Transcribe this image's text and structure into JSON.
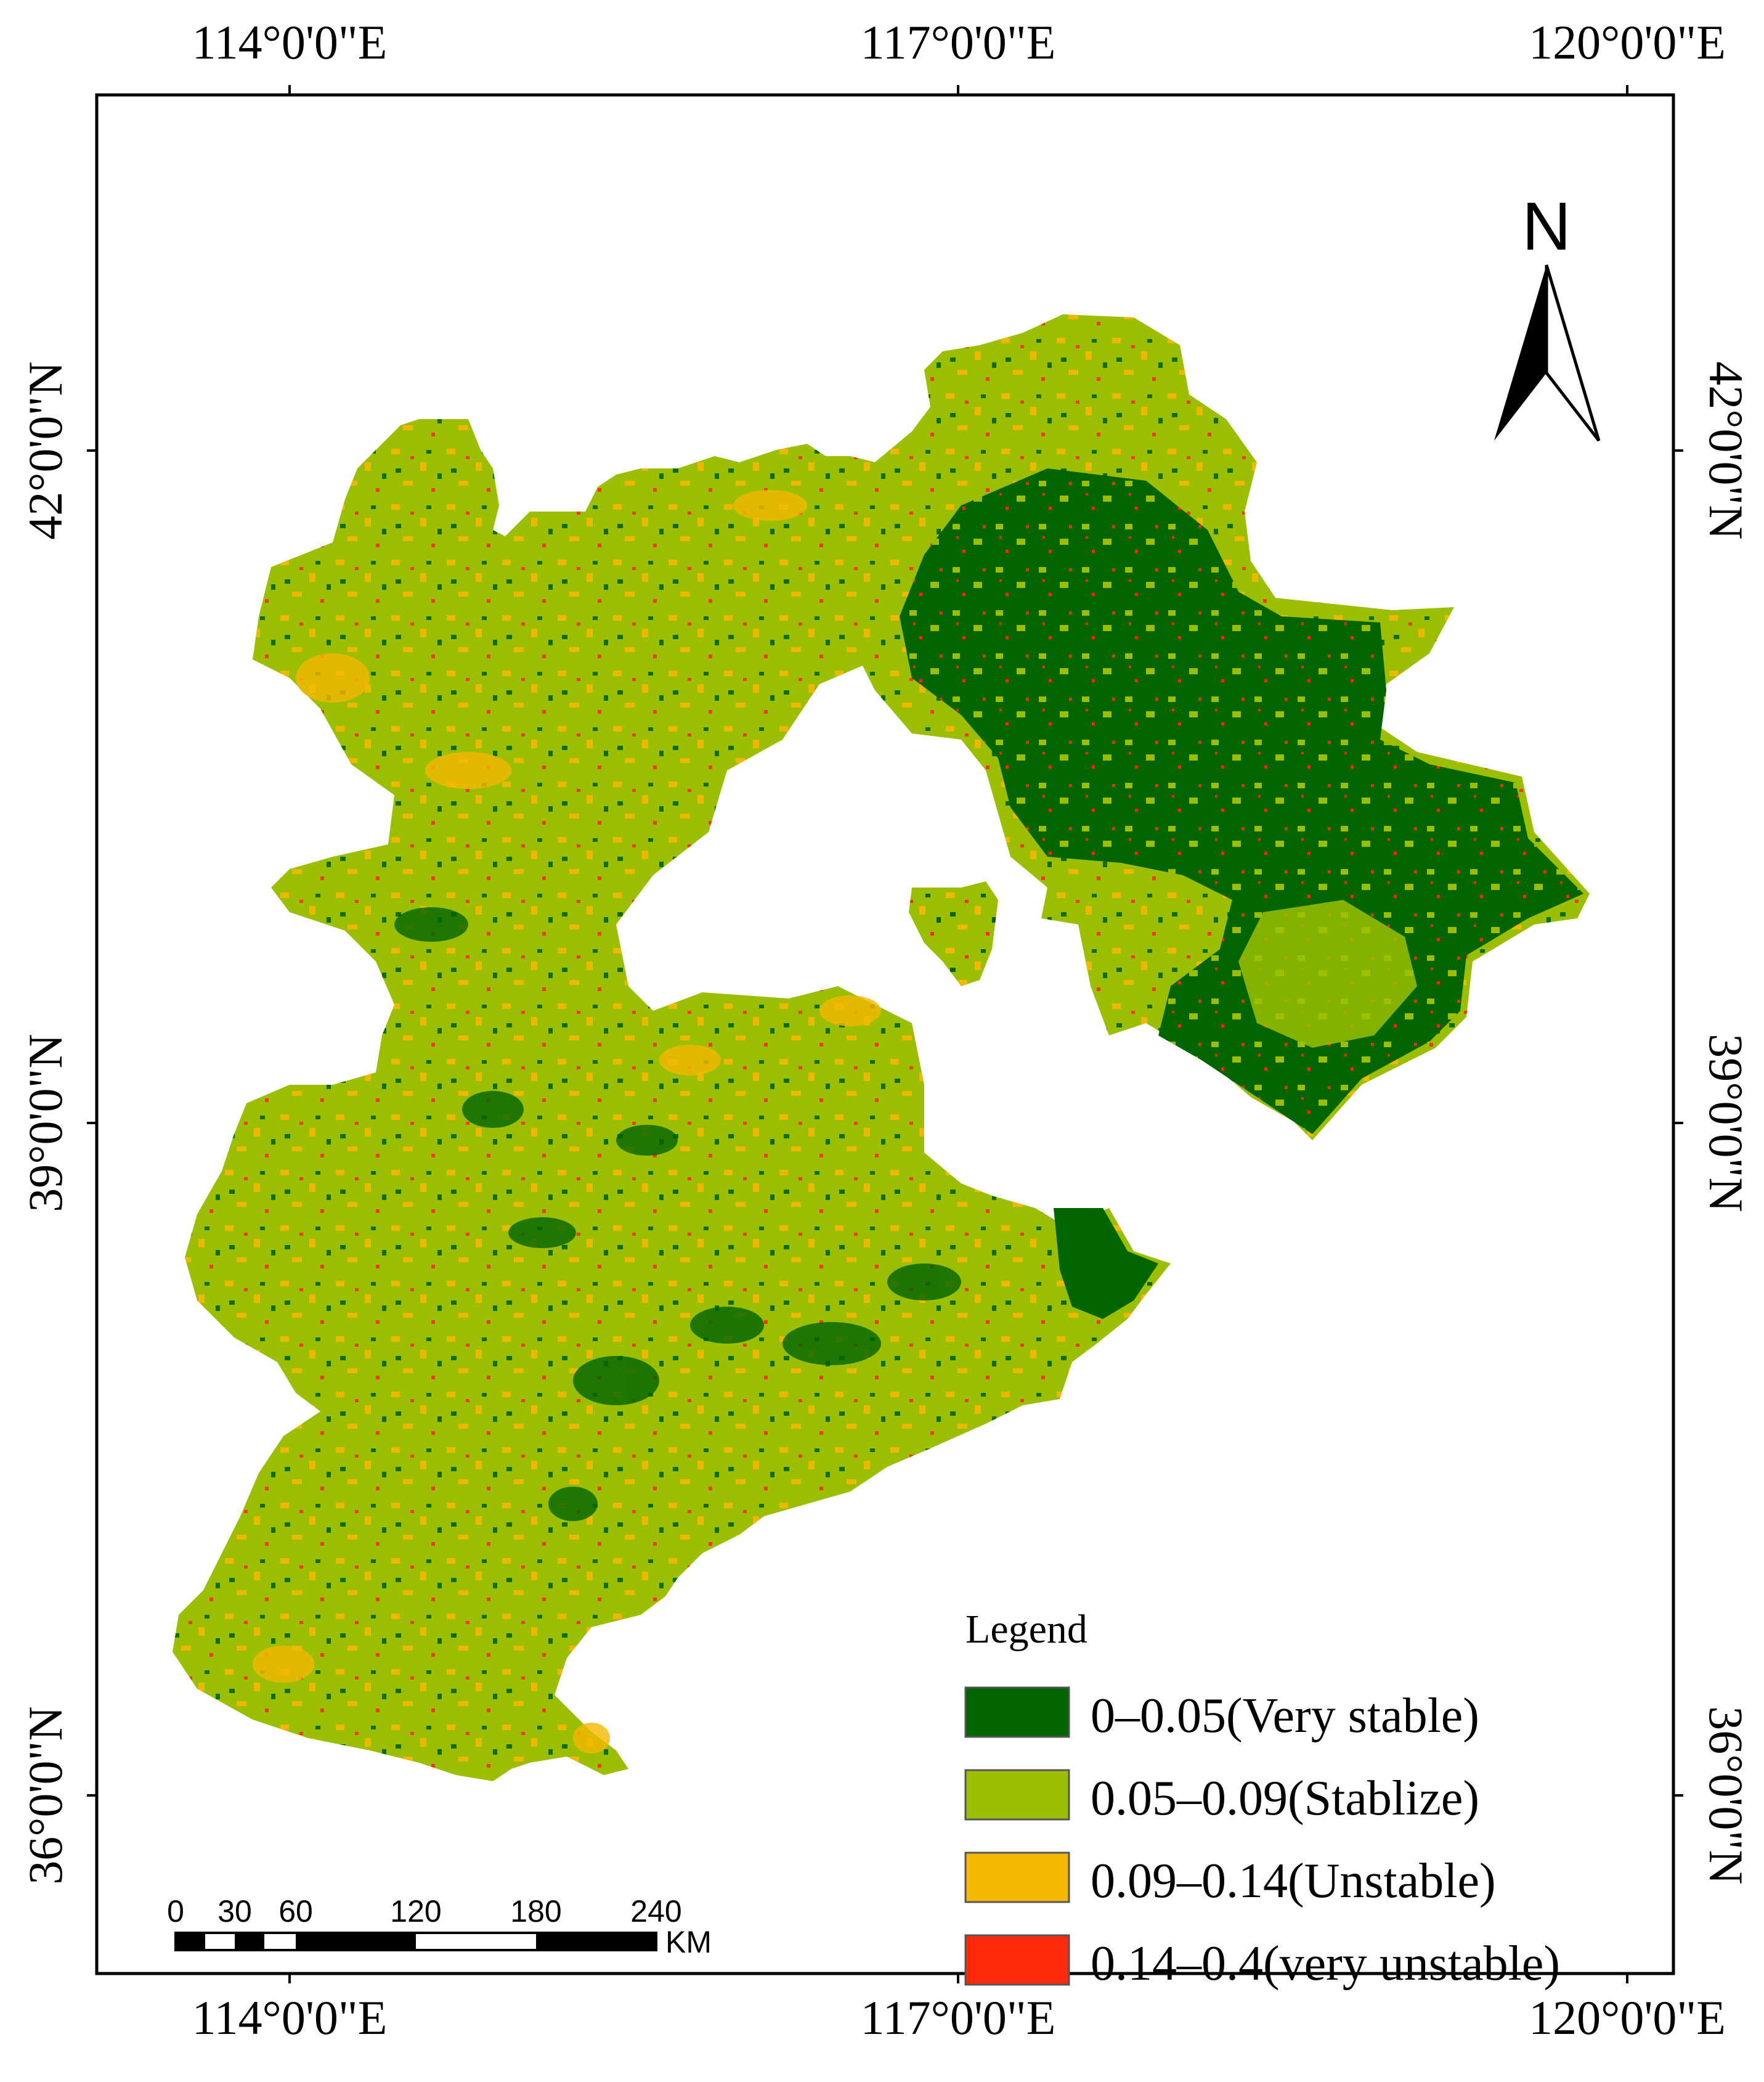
{
  "map": {
    "graticule": {
      "longitudes": [
        "114°0'0\"E",
        "117°0'0\"E",
        "120°0'0\"E"
      ],
      "latitudes": [
        "42°0'0\"N",
        "39°0'0\"N",
        "36°0'0\"N"
      ]
    },
    "north_arrow": {
      "label": "N",
      "icon": "north-arrow-icon"
    },
    "scale_bar": {
      "ticks": [
        "0",
        "30",
        "60",
        "120",
        "180",
        "240"
      ],
      "unit": "KM"
    },
    "legend": {
      "title": "Legend",
      "items": [
        {
          "label": "0–0.05(Very stable)",
          "color": "#006400"
        },
        {
          "label": "0.05–0.09(Stablize)",
          "color": "#9BBF00"
        },
        {
          "label": "0.09–0.14(Unstable)",
          "color": "#F5B800"
        },
        {
          "label": "0.14–0.4(very unstable)",
          "color": "#FF2A0A"
        }
      ]
    },
    "colors": {
      "very_stable": "#006400",
      "stable": "#9BBF00",
      "unstable": "#F5B800",
      "very_unstable": "#FF2A0A"
    }
  }
}
